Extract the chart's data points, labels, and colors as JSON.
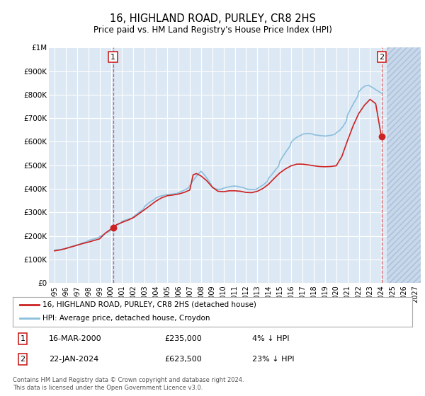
{
  "title": "16, HIGHLAND ROAD, PURLEY, CR8 2HS",
  "subtitle": "Price paid vs. HM Land Registry's House Price Index (HPI)",
  "legend_line1": "16, HIGHLAND ROAD, PURLEY, CR8 2HS (detached house)",
  "legend_line2": "HPI: Average price, detached house, Croydon",
  "sale1_date": "16-MAR-2000",
  "sale1_price": "£235,000",
  "sale1_hpi": "4% ↓ HPI",
  "sale2_date": "22-JAN-2024",
  "sale2_price": "£623,500",
  "sale2_hpi": "23% ↓ HPI",
  "footnote": "Contains HM Land Registry data © Crown copyright and database right 2024.\nThis data is licensed under the Open Government Licence v3.0.",
  "hpi_color": "#8bbfdd",
  "price_color": "#cc2222",
  "sale_marker_color": "#cc2222",
  "background_color": "#dce8f4",
  "grid_color": "#ffffff",
  "ylim": [
    0,
    1000000
  ],
  "xlim_start": 1994.5,
  "xlim_end": 2027.5,
  "sale1_x": 2000.2,
  "sale1_y": 235000,
  "sale2_x": 2024.05,
  "sale2_y": 623500,
  "years_hpi": [
    1995.0,
    1995.1,
    1995.3,
    1995.5,
    1995.7,
    1995.9,
    1996.0,
    1996.2,
    1996.5,
    1996.8,
    1997.0,
    1997.3,
    1997.6,
    1997.9,
    1998.0,
    1998.3,
    1998.6,
    1998.9,
    1999.0,
    1999.3,
    1999.6,
    1999.9,
    2000.0,
    2000.3,
    2000.6,
    2000.9,
    2001.0,
    2001.3,
    2001.6,
    2001.9,
    2002.0,
    2002.3,
    2002.6,
    2002.9,
    2003.0,
    2003.3,
    2003.6,
    2003.9,
    2004.0,
    2004.3,
    2004.6,
    2004.9,
    2005.0,
    2005.3,
    2005.6,
    2005.9,
    2006.0,
    2006.3,
    2006.6,
    2006.9,
    2007.0,
    2007.3,
    2007.6,
    2007.9,
    2008.0,
    2008.3,
    2008.6,
    2008.9,
    2009.0,
    2009.3,
    2009.6,
    2009.9,
    2010.0,
    2010.3,
    2010.6,
    2010.9,
    2011.0,
    2011.3,
    2011.6,
    2011.9,
    2012.0,
    2012.3,
    2012.6,
    2012.9,
    2013.0,
    2013.3,
    2013.6,
    2013.9,
    2014.0,
    2014.3,
    2014.6,
    2014.9,
    2015.0,
    2015.3,
    2015.6,
    2015.9,
    2016.0,
    2016.3,
    2016.6,
    2016.9,
    2017.0,
    2017.3,
    2017.6,
    2017.9,
    2018.0,
    2018.3,
    2018.6,
    2018.9,
    2019.0,
    2019.3,
    2019.6,
    2019.9,
    2020.0,
    2020.3,
    2020.6,
    2020.9,
    2021.0,
    2021.3,
    2021.6,
    2021.9,
    2022.0,
    2022.3,
    2022.6,
    2022.9,
    2023.0,
    2023.3,
    2023.6,
    2023.9,
    2024.0,
    2024.1
  ],
  "values_hpi": [
    140000,
    141000,
    142000,
    143000,
    144000,
    145000,
    148000,
    151000,
    155000,
    158000,
    162000,
    167000,
    172000,
    177000,
    181000,
    185000,
    189000,
    193000,
    197000,
    205000,
    213000,
    221000,
    229000,
    238000,
    247000,
    256000,
    263000,
    268000,
    272000,
    276000,
    282000,
    293000,
    304000,
    315000,
    326000,
    338000,
    348000,
    356000,
    362000,
    368000,
    372000,
    375000,
    376000,
    377000,
    379000,
    381000,
    384000,
    390000,
    397000,
    405000,
    413000,
    435000,
    455000,
    470000,
    475000,
    460000,
    440000,
    420000,
    405000,
    400000,
    398000,
    400000,
    403000,
    407000,
    410000,
    412000,
    412000,
    410000,
    407000,
    403000,
    400000,
    398000,
    397000,
    398000,
    402000,
    410000,
    420000,
    432000,
    445000,
    462000,
    480000,
    498000,
    518000,
    540000,
    562000,
    582000,
    598000,
    612000,
    622000,
    628000,
    632000,
    635000,
    635000,
    633000,
    630000,
    628000,
    626000,
    625000,
    624000,
    626000,
    628000,
    632000,
    638000,
    648000,
    665000,
    688000,
    714000,
    742000,
    768000,
    792000,
    812000,
    828000,
    838000,
    840000,
    836000,
    828000,
    818000,
    810000,
    806000,
    808000
  ],
  "years_price": [
    1995.0,
    1995.5,
    1996.0,
    1996.5,
    1997.0,
    1997.5,
    1998.0,
    1998.5,
    1999.0,
    1999.5,
    2000.0,
    2000.2,
    2000.5,
    2001.0,
    2001.5,
    2002.0,
    2002.5,
    2003.0,
    2003.5,
    2004.0,
    2004.5,
    2005.0,
    2005.5,
    2006.0,
    2006.5,
    2007.0,
    2007.3,
    2007.6,
    2008.0,
    2008.5,
    2009.0,
    2009.5,
    2010.0,
    2010.5,
    2011.0,
    2011.5,
    2012.0,
    2012.5,
    2013.0,
    2013.5,
    2014.0,
    2014.5,
    2015.0,
    2015.5,
    2016.0,
    2016.5,
    2017.0,
    2017.5,
    2018.0,
    2018.5,
    2019.0,
    2019.5,
    2020.0,
    2020.5,
    2021.0,
    2021.5,
    2022.0,
    2022.5,
    2023.0,
    2023.5,
    2024.0,
    2024.1
  ],
  "values_price": [
    137000,
    141000,
    147000,
    154000,
    161000,
    168000,
    174000,
    181000,
    188000,
    212000,
    229000,
    235000,
    248000,
    258000,
    267000,
    278000,
    295000,
    312000,
    330000,
    348000,
    362000,
    371000,
    374000,
    378000,
    385000,
    395000,
    460000,
    465000,
    455000,
    435000,
    408000,
    390000,
    388000,
    392000,
    392000,
    390000,
    385000,
    384000,
    390000,
    402000,
    420000,
    445000,
    468000,
    485000,
    498000,
    505000,
    505000,
    502000,
    498000,
    495000,
    494000,
    495000,
    498000,
    538000,
    605000,
    668000,
    720000,
    755000,
    780000,
    762000,
    623500,
    623500
  ]
}
